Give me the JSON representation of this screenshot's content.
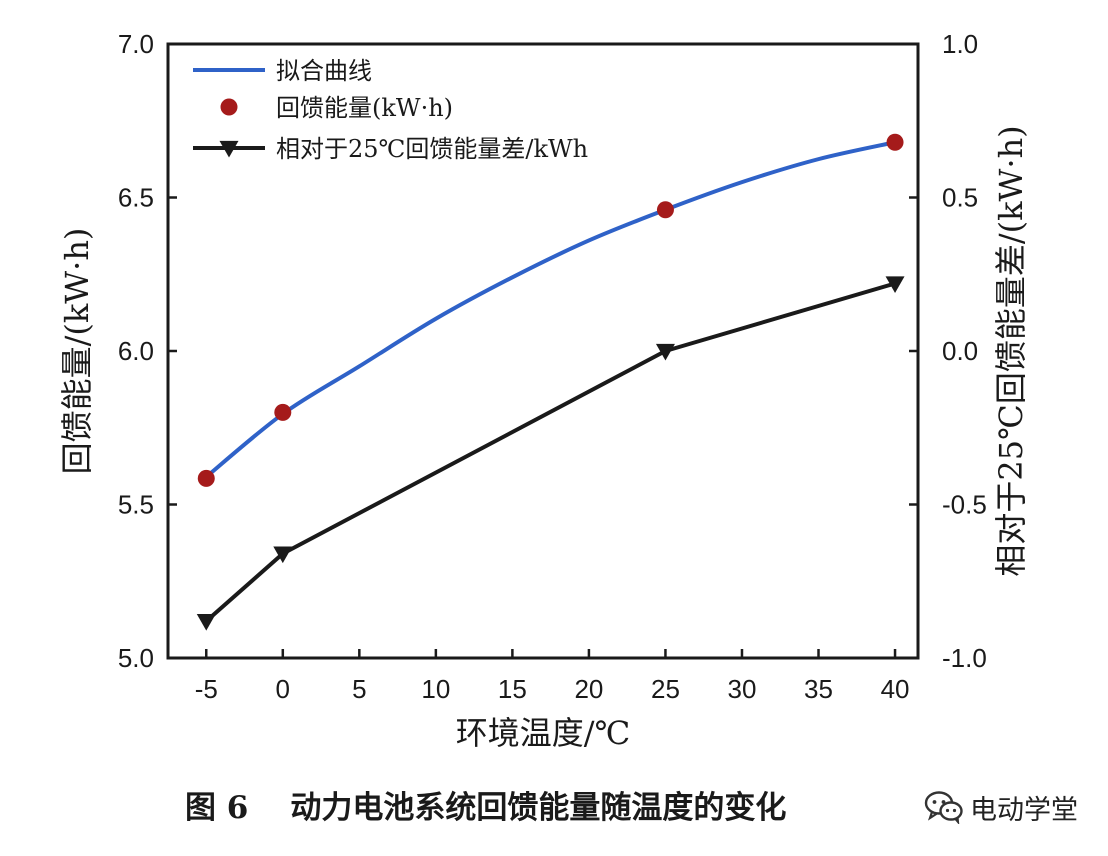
{
  "chart_data": {
    "type": "line",
    "x_axis": {
      "label": "环境温度/℃",
      "range": [
        -7.5,
        41.5
      ],
      "ticks": [
        -5,
        0,
        5,
        10,
        15,
        20,
        25,
        30,
        35,
        40
      ],
      "tick_labels": [
        "-5",
        "0",
        "5",
        "10",
        "15",
        "20",
        "25",
        "30",
        "35",
        "40"
      ]
    },
    "y_axis_left": {
      "label": "回馈能量/(kW·h)",
      "range": [
        5.0,
        7.0
      ],
      "ticks": [
        5.0,
        5.5,
        6.0,
        6.5,
        7.0
      ],
      "tick_labels": [
        "5.0",
        "5.5",
        "6.0",
        "6.5",
        "7.0"
      ]
    },
    "y_axis_right": {
      "label": "相对于25℃回馈能量差/(kW·h)",
      "range": [
        -1.0,
        1.0
      ],
      "ticks": [
        -1.0,
        -0.5,
        0.0,
        0.5,
        1.0
      ],
      "tick_labels": [
        "-1.0",
        "-0.5",
        "0.0",
        "0.5",
        "1.0"
      ]
    },
    "series": [
      {
        "name": "拟合曲线",
        "kind": "line",
        "axis": "left",
        "color": "#2f62c8",
        "x": [
          -5,
          0,
          5,
          10,
          15,
          20,
          25,
          30,
          35,
          40
        ],
        "values": [
          5.59,
          5.795,
          5.95,
          6.105,
          6.24,
          6.36,
          6.46,
          6.55,
          6.625,
          6.68
        ]
      },
      {
        "name": "回馈能量(kW·h)",
        "kind": "scatter",
        "axis": "left",
        "color": "#a51b1b",
        "x": [
          -5,
          0,
          25,
          40
        ],
        "values": [
          5.585,
          5.8,
          6.46,
          6.68
        ]
      },
      {
        "name": "相对于25℃回馈能量差/kWh",
        "kind": "line-triangle",
        "axis": "right",
        "color": "#1a1a1a",
        "x": [
          -5,
          0,
          25,
          40
        ],
        "values": [
          -0.88,
          -0.66,
          0.0,
          0.22
        ]
      }
    ],
    "legend_position": "top-left"
  },
  "caption": {
    "number": "图 6",
    "title": "动力电池系统回馈能量随温度的变化"
  },
  "watermark": {
    "text": "电动学堂"
  }
}
